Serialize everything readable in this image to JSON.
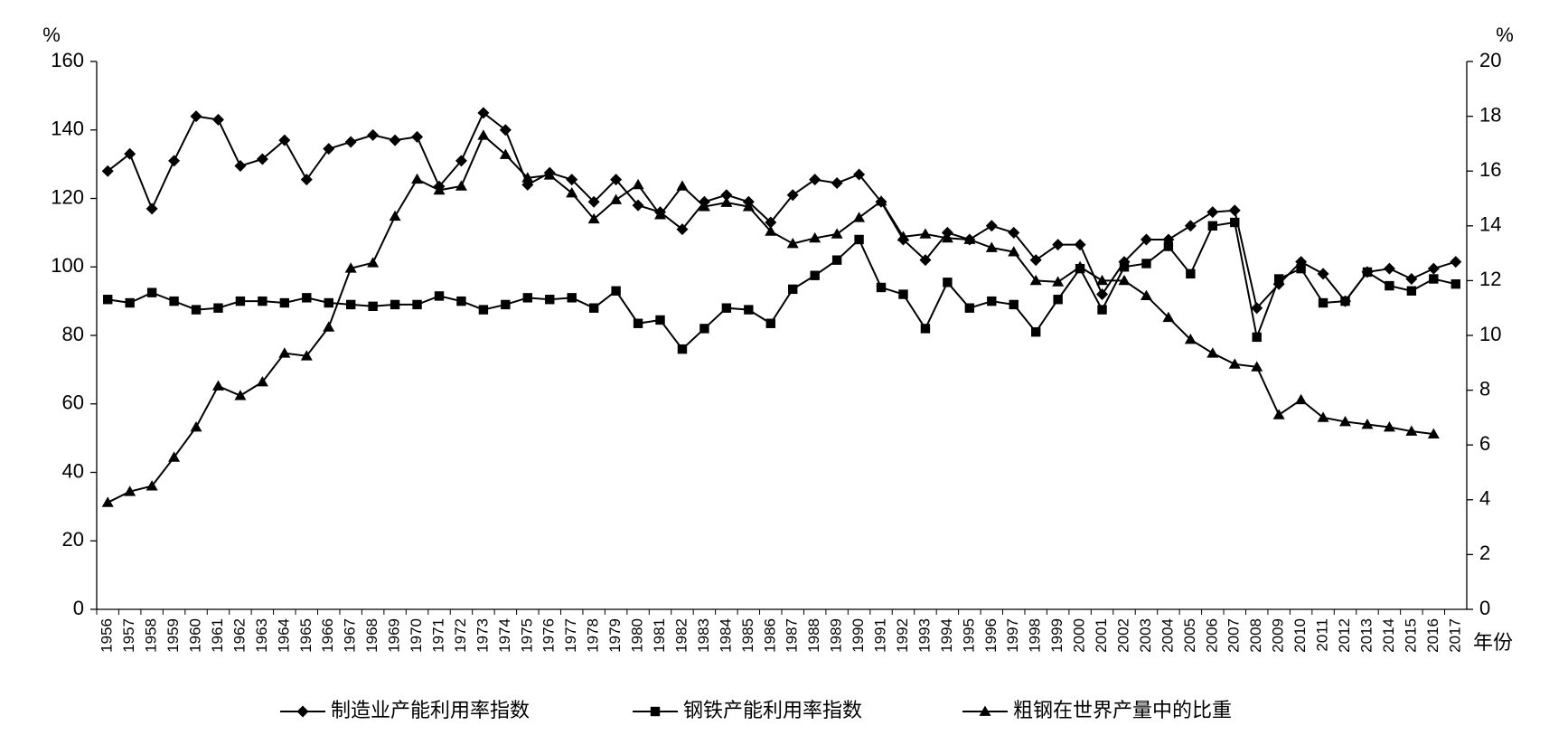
{
  "chart_data": {
    "type": "line",
    "y_unit": "%",
    "y2_unit": "%",
    "x_label": "年份",
    "categories": [
      "1956",
      "1957",
      "1958",
      "1959",
      "1960",
      "1961",
      "1962",
      "1963",
      "1964",
      "1965",
      "1966",
      "1967",
      "1968",
      "1969",
      "1970",
      "1971",
      "1972",
      "1973",
      "1974",
      "1975",
      "1976",
      "1977",
      "1978",
      "1979",
      "1980",
      "1981",
      "1982",
      "1983",
      "1984",
      "1985",
      "1986",
      "1987",
      "1988",
      "1989",
      "1990",
      "1991",
      "1992",
      "1993",
      "1994",
      "1995",
      "1996",
      "1997",
      "1998",
      "1999",
      "2000",
      "2001",
      "2002",
      "2003",
      "2004",
      "2005",
      "2006",
      "2007",
      "2008",
      "2009",
      "2010",
      "2011",
      "2012",
      "2013",
      "2014",
      "2015",
      "2016",
      "2017"
    ],
    "ylim": [
      0,
      160
    ],
    "yticks": [
      0,
      20,
      40,
      60,
      80,
      100,
      120,
      140,
      160
    ],
    "y2lim": [
      0,
      20
    ],
    "y2ticks": [
      0,
      2,
      4,
      6,
      8,
      10,
      12,
      14,
      16,
      18,
      20
    ],
    "legend": "bottom",
    "series": [
      {
        "name": "制造业产能利用率指数",
        "color": "#000000",
        "marker": "diamond",
        "values": [
          128,
          133,
          117,
          131,
          144,
          143,
          129.5,
          131.5,
          137,
          125.5,
          134.5,
          136.5,
          138.5,
          137,
          138,
          123.5,
          131,
          145,
          140,
          124,
          127.5,
          125.5,
          119,
          125.5,
          118,
          116,
          111,
          119,
          121,
          119,
          113,
          121,
          125.5,
          124.5,
          127,
          119,
          108,
          102,
          110,
          108,
          112,
          110,
          102,
          106.5,
          106.5,
          92,
          101.5,
          108,
          108,
          112,
          116,
          116.5,
          88,
          95,
          101.5,
          98,
          90,
          98.5,
          99.5,
          96.5,
          99.5,
          101.5
        ]
      },
      {
        "name": "钢铁产能利用率指数",
        "color": "#000000",
        "marker": "square",
        "values": [
          90.5,
          89.5,
          92.5,
          90,
          87.5,
          88,
          90,
          90,
          89.5,
          91,
          89.5,
          89,
          88.5,
          89,
          89,
          91.5,
          90,
          87.5,
          89,
          91,
          90.5,
          91,
          88,
          93,
          83.5,
          84.5,
          76,
          82,
          88,
          87.5,
          83.5,
          93.5,
          97.5,
          102,
          108,
          94,
          92,
          82,
          95.5,
          88,
          90,
          89,
          81,
          90.5,
          99.5,
          87.5,
          100,
          101,
          106,
          98,
          112,
          113,
          79.5,
          96.5,
          99.5,
          89.5,
          90,
          98.5,
          94.5,
          93,
          96.5,
          95
        ]
      },
      {
        "name": "粗钢在世界产量中的比重",
        "color": "#000000",
        "marker": "triangle",
        "axis": "y2",
        "values": [
          3.9,
          4.3,
          4.5,
          5.55,
          6.65,
          8.15,
          7.8,
          8.3,
          9.35,
          9.25,
          10.3,
          12.45,
          12.65,
          14.35,
          15.7,
          15.3,
          15.45,
          17.3,
          16.6,
          15.75,
          15.85,
          15.2,
          14.25,
          14.95,
          15.5,
          14.4,
          15.45,
          14.7,
          14.85,
          14.7,
          13.8,
          13.35,
          13.55,
          13.7,
          14.3,
          14.9,
          13.6,
          13.7,
          13.55,
          13.5,
          13.2,
          13.05,
          12,
          11.95,
          12.5,
          12,
          12,
          11.45,
          10.65,
          9.85,
          9.35,
          8.95,
          8.85,
          7.1,
          7.65,
          7,
          6.85,
          6.75,
          6.65,
          6.5,
          6.4,
          null
        ]
      }
    ]
  }
}
